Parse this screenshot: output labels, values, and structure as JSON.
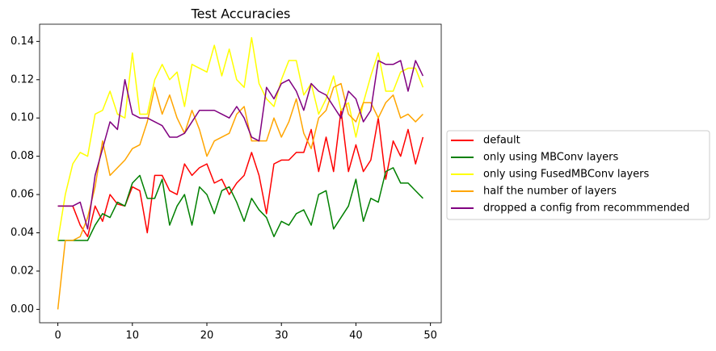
{
  "chart_data": {
    "type": "line",
    "title": "Test Accuracies",
    "x": [
      0,
      1,
      2,
      3,
      4,
      5,
      6,
      7,
      8,
      9,
      10,
      11,
      12,
      13,
      14,
      15,
      16,
      17,
      18,
      19,
      20,
      21,
      22,
      23,
      24,
      25,
      26,
      27,
      28,
      29,
      30,
      31,
      32,
      33,
      34,
      35,
      36,
      37,
      38,
      39,
      40,
      41,
      42,
      43,
      44,
      45,
      46,
      47,
      48,
      49
    ],
    "series": [
      {
        "name": "default",
        "color": "#ff0000",
        "values": [
          0.054,
          0.054,
          0.054,
          0.044,
          0.038,
          0.054,
          0.046,
          0.06,
          0.055,
          0.054,
          0.064,
          0.062,
          0.04,
          0.07,
          0.07,
          0.062,
          0.06,
          0.076,
          0.07,
          0.074,
          0.076,
          0.066,
          0.068,
          0.06,
          0.066,
          0.07,
          0.082,
          0.07,
          0.05,
          0.076,
          0.078,
          0.078,
          0.082,
          0.082,
          0.094,
          0.072,
          0.09,
          0.072,
          0.104,
          0.072,
          0.086,
          0.072,
          0.078,
          0.1,
          0.068,
          0.088,
          0.08,
          0.094,
          0.076,
          0.09
        ]
      },
      {
        "name": "only using MBConv layers",
        "color": "#008000",
        "values": [
          0.036,
          0.036,
          0.036,
          0.036,
          0.036,
          0.044,
          0.05,
          0.048,
          0.056,
          0.054,
          0.066,
          0.07,
          0.058,
          0.058,
          0.068,
          0.044,
          0.054,
          0.06,
          0.044,
          0.064,
          0.06,
          0.05,
          0.062,
          0.064,
          0.056,
          0.046,
          0.058,
          0.052,
          0.048,
          0.038,
          0.046,
          0.044,
          0.05,
          0.052,
          0.044,
          0.06,
          0.062,
          0.042,
          0.048,
          0.054,
          0.068,
          0.046,
          0.058,
          0.056,
          0.072,
          0.074,
          0.066,
          0.066,
          0.062,
          0.058
        ]
      },
      {
        "name": "only using FusedMBConv layers",
        "color": "#ffff00",
        "values": [
          0.036,
          0.06,
          0.076,
          0.082,
          0.08,
          0.102,
          0.104,
          0.114,
          0.102,
          0.1,
          0.134,
          0.102,
          0.102,
          0.12,
          0.128,
          0.12,
          0.124,
          0.106,
          0.128,
          0.126,
          0.124,
          0.138,
          0.122,
          0.136,
          0.12,
          0.116,
          0.142,
          0.118,
          0.11,
          0.106,
          0.12,
          0.13,
          0.13,
          0.112,
          0.118,
          0.102,
          0.11,
          0.122,
          0.104,
          0.108,
          0.09,
          0.108,
          0.122,
          0.134,
          0.114,
          0.114,
          0.124,
          0.126,
          0.126,
          0.116
        ]
      },
      {
        "name": "half the number of layers",
        "color": "#ffa500",
        "values": [
          0.0,
          0.036,
          0.036,
          0.038,
          0.048,
          0.064,
          0.088,
          0.07,
          0.074,
          0.078,
          0.084,
          0.086,
          0.098,
          0.116,
          0.102,
          0.112,
          0.1,
          0.092,
          0.104,
          0.094,
          0.08,
          0.088,
          0.09,
          0.092,
          0.102,
          0.106,
          0.088,
          0.088,
          0.088,
          0.1,
          0.09,
          0.098,
          0.11,
          0.092,
          0.084,
          0.1,
          0.104,
          0.116,
          0.118,
          0.102,
          0.098,
          0.108,
          0.108,
          0.1,
          0.108,
          0.112,
          0.1,
          0.102,
          0.098,
          0.102
        ]
      },
      {
        "name": "dropped a config from recommmended",
        "color": "#800080",
        "values": [
          0.054,
          0.054,
          0.054,
          0.056,
          0.042,
          0.07,
          0.084,
          0.098,
          0.094,
          0.12,
          0.102,
          0.1,
          0.1,
          0.098,
          0.096,
          0.09,
          0.09,
          0.092,
          0.098,
          0.104,
          0.104,
          0.104,
          0.102,
          0.1,
          0.106,
          0.1,
          0.09,
          0.088,
          0.116,
          0.11,
          0.118,
          0.12,
          0.114,
          0.104,
          0.118,
          0.114,
          0.112,
          0.106,
          0.1,
          0.114,
          0.11,
          0.098,
          0.104,
          0.13,
          0.128,
          0.128,
          0.13,
          0.114,
          0.13,
          0.122
        ]
      }
    ],
    "xlim": [
      -2.45,
      51.45
    ],
    "xticks": [
      0,
      10,
      20,
      30,
      40,
      50
    ],
    "ylim": [
      -0.007,
      0.149
    ],
    "yticks": [
      {
        "value": 0,
        "label": "0.00"
      },
      {
        "value": 0.02,
        "label": "0.02"
      },
      {
        "value": 0.04,
        "label": "0.04"
      },
      {
        "value": 0.06,
        "label": "0.06"
      },
      {
        "value": 0.08,
        "label": "0.08"
      },
      {
        "value": 0.1,
        "label": "0.10"
      },
      {
        "value": 0.12,
        "label": "0.12"
      },
      {
        "value": 0.14,
        "label": "0.14"
      }
    ],
    "grid": false,
    "legend": "center left outside"
  }
}
